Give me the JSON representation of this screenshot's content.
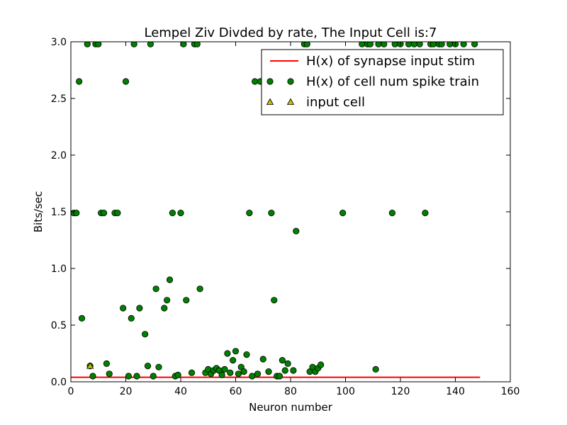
{
  "chart_data": {
    "type": "scatter",
    "title": "Lempel Ziv Divded by rate, The Input Cell is:7",
    "xlabel": "Neuron number",
    "ylabel": "Bits/sec",
    "xlim": [
      0,
      160
    ],
    "ylim": [
      0,
      3.0
    ],
    "xticks": [
      0,
      20,
      40,
      60,
      80,
      100,
      120,
      140,
      160
    ],
    "yticks": [
      0.0,
      0.5,
      1.0,
      1.5,
      2.0,
      2.5,
      3.0
    ],
    "xtick_labels": [
      "0",
      "20",
      "40",
      "60",
      "80",
      "100",
      "120",
      "140",
      "160"
    ],
    "ytick_labels": [
      "0.0",
      "0.5",
      "1.0",
      "1.5",
      "2.0",
      "2.5",
      "3.0"
    ],
    "grid": false,
    "legend_position": "top-right",
    "legend": [
      {
        "label": "H(x) of synapse input stim",
        "marker": "line",
        "color": "#ff0000"
      },
      {
        "label": "H(x) of cell num spike train",
        "marker": "circle",
        "color": "#008000"
      },
      {
        "label": "input cell",
        "marker": "triangle",
        "color": "#bfbf00"
      }
    ],
    "series": [
      {
        "name": "H(x) of synapse input stim",
        "kind": "line",
        "color": "#ff0000",
        "x": [
          0,
          149
        ],
        "y": [
          0.04,
          0.04
        ]
      },
      {
        "name": "H(x) of cell num spike train",
        "kind": "circle",
        "color": "#008000",
        "points": [
          [
            1,
            1.49
          ],
          [
            2,
            1.49
          ],
          [
            3,
            2.65
          ],
          [
            4,
            0.56
          ],
          [
            6,
            2.98
          ],
          [
            7,
            0.14
          ],
          [
            8,
            0.05
          ],
          [
            9,
            2.98
          ],
          [
            10,
            2.98
          ],
          [
            11,
            1.49
          ],
          [
            12,
            1.49
          ],
          [
            13,
            0.16
          ],
          [
            14,
            0.07
          ],
          [
            16,
            1.49
          ],
          [
            17,
            1.49
          ],
          [
            19,
            0.65
          ],
          [
            20,
            2.65
          ],
          [
            21,
            0.05
          ],
          [
            22,
            0.56
          ],
          [
            23,
            2.98
          ],
          [
            24,
            0.05
          ],
          [
            25,
            0.65
          ],
          [
            27,
            0.42
          ],
          [
            28,
            0.14
          ],
          [
            29,
            2.98
          ],
          [
            30,
            0.05
          ],
          [
            31,
            0.82
          ],
          [
            32,
            0.13
          ],
          [
            34,
            0.65
          ],
          [
            35,
            0.72
          ],
          [
            36,
            0.9
          ],
          [
            37,
            1.49
          ],
          [
            38,
            0.05
          ],
          [
            39,
            0.06
          ],
          [
            40,
            1.49
          ],
          [
            41,
            2.98
          ],
          [
            42,
            0.72
          ],
          [
            44,
            0.08
          ],
          [
            45,
            2.98
          ],
          [
            46,
            2.98
          ],
          [
            47,
            0.82
          ],
          [
            49,
            0.08
          ],
          [
            50,
            0.11
          ],
          [
            51,
            0.07
          ],
          [
            52,
            0.1
          ],
          [
            53,
            0.12
          ],
          [
            54,
            0.1
          ],
          [
            55,
            0.06
          ],
          [
            56,
            0.11
          ],
          [
            57,
            0.25
          ],
          [
            58,
            0.08
          ],
          [
            59,
            0.19
          ],
          [
            60,
            0.27
          ],
          [
            61,
            0.07
          ],
          [
            62,
            0.13
          ],
          [
            63,
            0.09
          ],
          [
            64,
            0.24
          ],
          [
            65,
            1.49
          ],
          [
            66,
            0.05
          ],
          [
            67,
            2.65
          ],
          [
            68,
            0.07
          ],
          [
            69,
            2.65
          ],
          [
            70,
            0.2
          ],
          [
            72,
            0.09
          ],
          [
            73,
            1.49
          ],
          [
            74,
            0.72
          ],
          [
            75,
            0.05
          ],
          [
            76,
            0.05
          ],
          [
            77,
            0.19
          ],
          [
            78,
            0.1
          ],
          [
            79,
            0.16
          ],
          [
            81,
            0.1
          ],
          [
            82,
            1.33
          ],
          [
            85,
            2.98
          ],
          [
            86,
            2.98
          ],
          [
            87,
            0.09
          ],
          [
            88,
            0.13
          ],
          [
            89,
            0.09
          ],
          [
            90,
            0.12
          ],
          [
            91,
            0.15
          ],
          [
            99,
            1.49
          ],
          [
            106,
            2.98
          ],
          [
            108,
            2.98
          ],
          [
            109,
            2.98
          ],
          [
            111,
            0.11
          ],
          [
            112,
            2.98
          ],
          [
            114,
            2.98
          ],
          [
            117,
            1.49
          ],
          [
            118,
            2.98
          ],
          [
            120,
            2.98
          ],
          [
            123,
            2.98
          ],
          [
            125,
            2.98
          ],
          [
            127,
            2.98
          ],
          [
            129,
            1.49
          ],
          [
            131,
            2.98
          ],
          [
            132,
            2.98
          ],
          [
            134,
            2.98
          ],
          [
            135,
            2.98
          ],
          [
            138,
            2.98
          ],
          [
            140,
            2.98
          ],
          [
            143,
            2.98
          ],
          [
            147,
            2.98
          ]
        ]
      },
      {
        "name": "input cell",
        "kind": "triangle",
        "color": "#bfbf00",
        "points": [
          [
            7,
            0.14
          ]
        ]
      }
    ]
  }
}
